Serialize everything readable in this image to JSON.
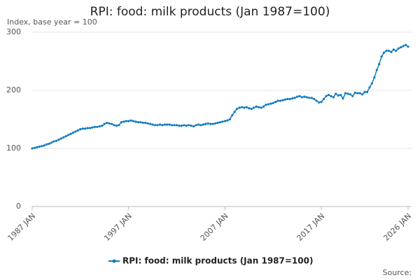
{
  "chart_data": {
    "type": "line",
    "title": "RPI: food: milk products (Jan 1987=100)",
    "subtitle": "Index, base year = 100",
    "source": "Source:",
    "categories": [
      "1987 JAN",
      null,
      null,
      null,
      null,
      null,
      null,
      null,
      null,
      null,
      null,
      null,
      null,
      null,
      null,
      null,
      null,
      null,
      null,
      null,
      null,
      null,
      null,
      null,
      null,
      null,
      null,
      null,
      null,
      null,
      null,
      null,
      null,
      null,
      null,
      null,
      null,
      null,
      null,
      null,
      "1997 JAN",
      null,
      null,
      null,
      null,
      null,
      null,
      null,
      null,
      null,
      null,
      null,
      null,
      null,
      null,
      null,
      null,
      null,
      null,
      null,
      null,
      null,
      null,
      null,
      null,
      null,
      null,
      null,
      null,
      null,
      null,
      null,
      null,
      null,
      null,
      null,
      null,
      null,
      null,
      null,
      "2007 JAN",
      null,
      null,
      null,
      null,
      null,
      null,
      null,
      null,
      null,
      null,
      null,
      null,
      null,
      null,
      null,
      null,
      null,
      null,
      null,
      null,
      null,
      null,
      null,
      null,
      null,
      null,
      null,
      null,
      null,
      null,
      null,
      null,
      null,
      null,
      null,
      null,
      null,
      null,
      null,
      "2017 JAN",
      null,
      null,
      null,
      null,
      null,
      null,
      null,
      null,
      null,
      null,
      null,
      null,
      null,
      null,
      null,
      null,
      null,
      null,
      null,
      null,
      null,
      null,
      null,
      null,
      null,
      null,
      null,
      null,
      null,
      null,
      null,
      null,
      null,
      null,
      null,
      "2026 JAN"
    ],
    "series": [
      {
        "name": "RPI: food: milk products (Jan 1987=100)",
        "color": "#0f7cc0",
        "values": [
          100,
          101,
          102,
          103,
          104,
          105,
          107,
          108,
          110,
          112,
          113,
          115,
          117,
          119,
          121,
          123,
          125,
          127,
          129,
          131,
          133,
          134,
          134,
          135,
          135,
          136,
          137,
          137,
          138,
          139,
          142,
          144,
          143,
          142,
          140,
          139,
          140,
          145,
          146,
          147,
          147,
          148,
          147,
          146,
          145,
          145,
          144,
          144,
          143,
          142,
          141,
          140,
          140,
          141,
          140,
          141,
          141,
          141,
          140,
          140,
          140,
          139,
          139,
          140,
          139,
          140,
          139,
          138,
          140,
          141,
          140,
          141,
          142,
          143,
          142,
          142,
          143,
          144,
          145,
          146,
          147,
          148,
          150,
          157,
          163,
          168,
          170,
          171,
          170,
          171,
          169,
          168,
          170,
          172,
          171,
          170,
          172,
          175,
          176,
          177,
          178,
          180,
          182,
          182,
          183,
          184,
          185,
          185,
          186,
          187,
          189,
          190,
          188,
          189,
          188,
          187,
          187,
          185,
          182,
          179,
          180,
          185,
          190,
          192,
          190,
          188,
          194,
          191,
          192,
          186,
          195,
          194,
          193,
          190,
          196,
          195,
          195,
          193,
          197,
          197,
          205,
          212,
          222,
          235,
          245,
          258,
          265,
          268,
          268,
          266,
          270,
          268,
          272,
          274,
          276,
          278,
          275
        ]
      }
    ],
    "ylim": [
      0,
      300
    ],
    "yticks": [
      0,
      100,
      200,
      300
    ],
    "grid": true,
    "legend": "bottom"
  }
}
